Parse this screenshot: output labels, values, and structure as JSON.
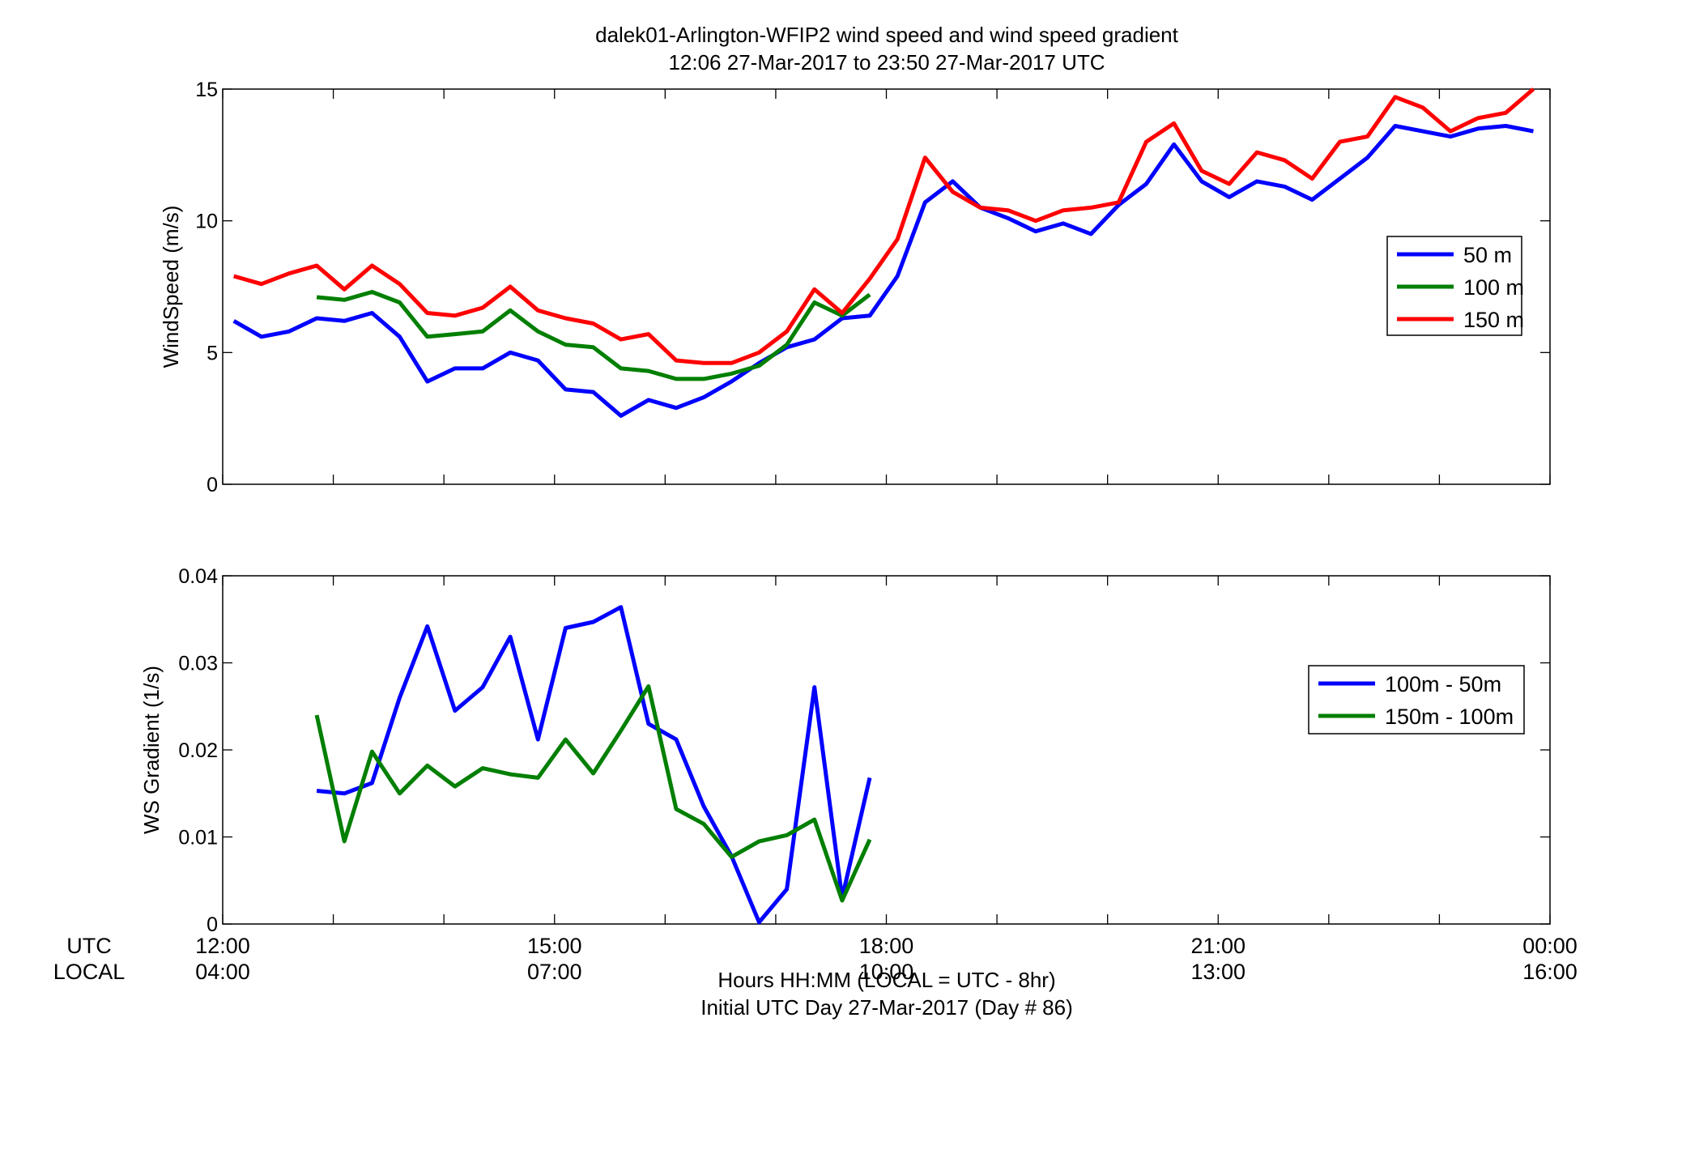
{
  "figure": {
    "title_line1": "dalek01-Arlington-WFIP2  wind speed and wind speed gradient",
    "title_line2": "12:06 27-Mar-2017 to 23:50 27-Mar-2017  UTC",
    "xlabel_line1": "Hours HH:MM  (LOCAL = UTC - 8hr)",
    "xlabel_line2": "Initial UTC Day 27-Mar-2017 (Day # 86)",
    "row_labels": [
      "UTC",
      "LOCAL"
    ],
    "utc_ticks": [
      "12:00",
      "15:00",
      "18:00",
      "21:00",
      "00:00"
    ],
    "local_ticks": [
      "04:00",
      "07:00",
      "10:00",
      "13:00",
      "16:00"
    ]
  },
  "chart_data": [
    {
      "type": "line",
      "title": "",
      "ylabel": "WindSpeed (m/s)",
      "xlim": [
        12.0,
        24.0
      ],
      "ylim": [
        0,
        15
      ],
      "yticks": [
        "0",
        "5",
        "10",
        "15"
      ],
      "legend_placement": "right",
      "grid": false,
      "series": [
        {
          "name": "50 m",
          "color": "#0000ff",
          "x": [
            12.1,
            12.35,
            12.6,
            12.85,
            13.1,
            13.35,
            13.6,
            13.85,
            14.1,
            14.35,
            14.6,
            14.85,
            15.1,
            15.35,
            15.6,
            15.85,
            16.1,
            16.35,
            16.6,
            16.85,
            17.1,
            17.35,
            17.6,
            17.85,
            18.1,
            18.35,
            18.6,
            18.85,
            19.1,
            19.35,
            19.6,
            19.85,
            20.1,
            20.35,
            20.6,
            20.85,
            21.1,
            21.35,
            21.6,
            21.85,
            22.1,
            22.35,
            22.6,
            22.85,
            23.1,
            23.35,
            23.6,
            23.85
          ],
          "y": [
            6.2,
            5.6,
            5.8,
            6.3,
            6.2,
            6.5,
            5.6,
            3.9,
            4.4,
            4.4,
            5.0,
            4.7,
            3.6,
            3.5,
            2.6,
            3.2,
            2.9,
            3.3,
            3.9,
            4.6,
            5.2,
            5.5,
            6.3,
            6.4,
            7.9,
            10.7,
            11.5,
            10.5,
            10.1,
            9.6,
            9.9,
            9.5,
            10.6,
            11.4,
            12.9,
            11.5,
            10.9,
            11.5,
            11.3,
            10.8,
            11.6,
            12.4,
            13.6,
            13.4,
            13.2,
            13.5,
            13.6,
            13.4
          ]
        },
        {
          "name": "100 m",
          "color": "#007f00",
          "x": [
            12.85,
            13.1,
            13.35,
            13.6,
            13.85,
            14.1,
            14.35,
            14.6,
            14.85,
            15.1,
            15.35,
            15.6,
            15.85,
            16.1,
            16.35,
            16.6,
            16.85,
            17.1,
            17.35,
            17.6,
            17.85
          ],
          "y": [
            7.1,
            7.0,
            7.3,
            6.9,
            5.6,
            5.7,
            5.8,
            6.6,
            5.8,
            5.3,
            5.2,
            4.4,
            4.3,
            4.0,
            4.0,
            4.2,
            4.5,
            5.3,
            6.9,
            6.4,
            7.2
          ]
        },
        {
          "name": "150 m",
          "color": "#ff0000",
          "x": [
            12.1,
            12.35,
            12.6,
            12.85,
            13.1,
            13.35,
            13.6,
            13.85,
            14.1,
            14.35,
            14.6,
            14.85,
            15.1,
            15.35,
            15.6,
            15.85,
            16.1,
            16.35,
            16.6,
            16.85,
            17.1,
            17.35,
            17.6,
            17.85,
            18.1,
            18.35,
            18.6,
            18.85,
            19.1,
            19.35,
            19.6,
            19.85,
            20.1,
            20.35,
            20.6,
            20.85,
            21.1,
            21.35,
            21.6,
            21.85,
            22.1,
            22.35,
            22.6,
            22.85,
            23.1,
            23.35,
            23.6,
            23.85
          ],
          "y": [
            7.9,
            7.6,
            8.0,
            8.3,
            7.4,
            8.3,
            7.6,
            6.5,
            6.4,
            6.7,
            7.5,
            6.6,
            6.3,
            6.1,
            5.5,
            5.7,
            4.7,
            4.6,
            4.6,
            5.0,
            5.8,
            7.4,
            6.5,
            7.8,
            9.3,
            12.4,
            11.1,
            10.5,
            10.4,
            10.0,
            10.4,
            10.5,
            10.7,
            13.0,
            13.7,
            11.9,
            11.4,
            12.6,
            12.3,
            11.6,
            13.0,
            13.2,
            14.7,
            14.3,
            13.4,
            13.9,
            14.1,
            15.0
          ]
        }
      ]
    },
    {
      "type": "line",
      "title": "",
      "ylabel": "WS Gradient (1/s)",
      "xlim": [
        12.0,
        24.0
      ],
      "ylim": [
        0,
        0.04
      ],
      "yticks": [
        "0",
        "0.01",
        "0.02",
        "0.03",
        "0.04"
      ],
      "legend_placement": "right",
      "grid": false,
      "series": [
        {
          "name": "100m - 50m",
          "color": "#0000ff",
          "x": [
            12.85,
            13.1,
            13.35,
            13.6,
            13.85,
            14.1,
            14.35,
            14.6,
            14.85,
            15.1,
            15.35,
            15.6,
            15.85,
            16.1,
            16.35,
            16.6,
            16.85,
            17.1,
            17.35,
            17.6,
            17.85
          ],
          "y": [
            0.0153,
            0.015,
            0.0162,
            0.026,
            0.0342,
            0.0245,
            0.0272,
            0.033,
            0.0212,
            0.034,
            0.0347,
            0.0364,
            0.023,
            0.0212,
            0.0135,
            0.0078,
            0.0002,
            0.004,
            0.0272,
            0.003,
            0.0168
          ]
        },
        {
          "name": "150m - 100m",
          "color": "#007f00",
          "x": [
            12.85,
            13.1,
            13.35,
            13.6,
            13.85,
            14.1,
            14.35,
            14.6,
            14.85,
            15.1,
            15.35,
            15.6,
            15.85,
            16.1,
            16.35,
            16.6,
            16.85,
            17.1,
            17.35,
            17.6,
            17.85
          ],
          "y": [
            0.024,
            0.0095,
            0.0198,
            0.015,
            0.0182,
            0.0158,
            0.0179,
            0.0172,
            0.0168,
            0.0212,
            0.0173,
            0.0222,
            0.0273,
            0.0132,
            0.0115,
            0.0077,
            0.0095,
            0.0102,
            0.012,
            0.0027,
            0.0097
          ]
        }
      ]
    }
  ]
}
